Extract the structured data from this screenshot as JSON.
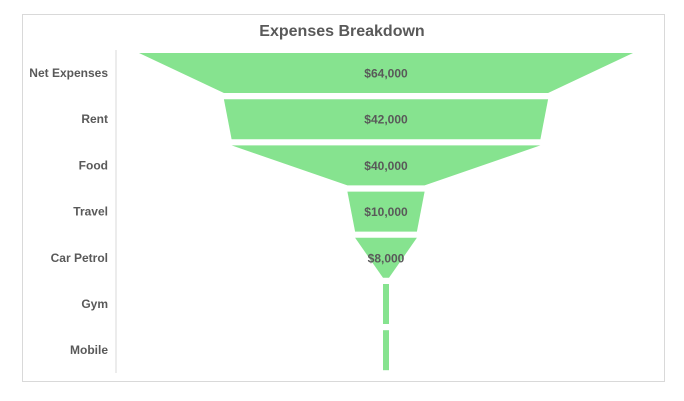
{
  "chart_data": {
    "type": "funnel",
    "title": "Expenses Breakdown",
    "categories": [
      "Net Expenses",
      "Rent",
      "Food",
      "Travel",
      "Car Petrol",
      "Gym",
      "Mobile"
    ],
    "values": [
      64000,
      42000,
      40000,
      10000,
      8000,
      700,
      700
    ],
    "data_labels": [
      "$64,000",
      "$42,000",
      "$40,000",
      "$10,000",
      "$8,000",
      "",
      ""
    ],
    "legend": "none",
    "grid": false
  },
  "colors": {
    "fill": "#86e38f",
    "text": "#595959",
    "axis": "#d9d9d9"
  }
}
